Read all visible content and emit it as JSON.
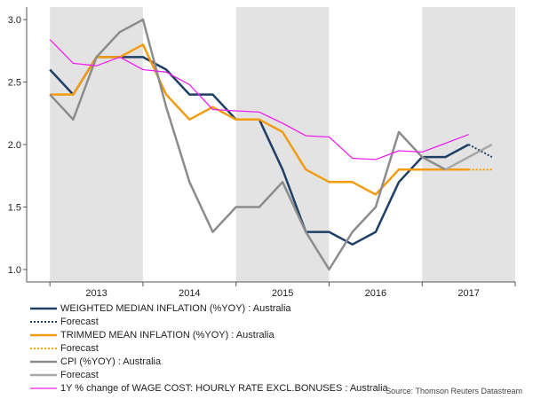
{
  "chart_data": {
    "type": "line",
    "title": "",
    "xlabel": "",
    "ylabel": "",
    "ylim": [
      0.9,
      3.1
    ],
    "yticks": [
      "1.0",
      "1.5",
      "2.0",
      "2.5",
      "3.0"
    ],
    "year_labels": [
      "2013",
      "2014",
      "2015",
      "2016",
      "2017"
    ],
    "shaded_years": [
      "2013",
      "2015",
      "2017"
    ],
    "grid": false,
    "legend_position": "bottom",
    "source": "Source: Thomson Reuters Datastream",
    "series": [
      {
        "name": "WEIGHTED MEDIAN INFLATION (%YOY) : Australia",
        "color": "#1f3f66",
        "style": "solid",
        "points": [
          [
            2013.0,
            2.6
          ],
          [
            2013.25,
            2.4
          ],
          [
            2013.5,
            2.7
          ],
          [
            2013.75,
            2.7
          ],
          [
            2014.0,
            2.7
          ],
          [
            2014.25,
            2.6
          ],
          [
            2014.5,
            2.4
          ],
          [
            2014.75,
            2.4
          ],
          [
            2015.0,
            2.2
          ],
          [
            2015.25,
            2.2
          ],
          [
            2015.5,
            1.8
          ],
          [
            2015.75,
            1.3
          ],
          [
            2016.0,
            1.3
          ],
          [
            2016.25,
            1.2
          ],
          [
            2016.5,
            1.3
          ],
          [
            2016.75,
            1.7
          ],
          [
            2017.0,
            1.9
          ],
          [
            2017.25,
            1.9
          ],
          [
            2017.5,
            2.0
          ]
        ]
      },
      {
        "name": "Forecast",
        "color": "#1f3f66",
        "style": "dotted",
        "points": [
          [
            2017.5,
            2.0
          ],
          [
            2017.75,
            1.9
          ]
        ]
      },
      {
        "name": "TRIMMED MEAN INFLATION (%YOY) : Australia",
        "color": "#f39c12",
        "style": "solid",
        "points": [
          [
            2013.0,
            2.4
          ],
          [
            2013.25,
            2.4
          ],
          [
            2013.5,
            2.7
          ],
          [
            2013.75,
            2.7
          ],
          [
            2014.0,
            2.8
          ],
          [
            2014.25,
            2.4
          ],
          [
            2014.5,
            2.2
          ],
          [
            2014.75,
            2.3
          ],
          [
            2015.0,
            2.2
          ],
          [
            2015.25,
            2.2
          ],
          [
            2015.5,
            2.1
          ],
          [
            2015.75,
            1.8
          ],
          [
            2016.0,
            1.7
          ],
          [
            2016.25,
            1.7
          ],
          [
            2016.5,
            1.6
          ],
          [
            2016.75,
            1.8
          ],
          [
            2017.0,
            1.8
          ],
          [
            2017.25,
            1.8
          ],
          [
            2017.5,
            1.8
          ]
        ]
      },
      {
        "name": "Forecast",
        "color": "#f39c12",
        "style": "dotted",
        "points": [
          [
            2017.5,
            1.8
          ],
          [
            2017.75,
            1.8
          ]
        ]
      },
      {
        "name": "CPI (%YOY) : Australia",
        "color": "#8c8c8c",
        "style": "solid",
        "points": [
          [
            2013.0,
            2.4
          ],
          [
            2013.25,
            2.2
          ],
          [
            2013.5,
            2.7
          ],
          [
            2013.75,
            2.9
          ],
          [
            2014.0,
            3.0
          ],
          [
            2014.25,
            2.3
          ],
          [
            2014.5,
            1.7
          ],
          [
            2014.75,
            1.3
          ],
          [
            2015.0,
            1.5
          ],
          [
            2015.25,
            1.5
          ],
          [
            2015.5,
            1.7
          ],
          [
            2015.75,
            1.3
          ],
          [
            2016.0,
            1.0
          ],
          [
            2016.25,
            1.3
          ],
          [
            2016.5,
            1.5
          ],
          [
            2016.75,
            2.1
          ],
          [
            2017.0,
            1.9
          ],
          [
            2017.25,
            1.8
          ]
        ]
      },
      {
        "name": "Forecast",
        "color": "#a8a8a8",
        "style": "solid",
        "points": [
          [
            2017.25,
            1.8
          ],
          [
            2017.5,
            1.9
          ],
          [
            2017.75,
            2.0
          ]
        ]
      },
      {
        "name": "1Y % change of WAGE COST: HOURLY RATE EXCL.BONUSES : Australia",
        "color": "#ee22ee",
        "style": "solid",
        "points": [
          [
            2013.0,
            2.84
          ],
          [
            2013.25,
            2.65
          ],
          [
            2013.5,
            2.63
          ],
          [
            2013.75,
            2.7
          ],
          [
            2014.0,
            2.6
          ],
          [
            2014.25,
            2.58
          ],
          [
            2014.5,
            2.48
          ],
          [
            2014.75,
            2.28
          ],
          [
            2015.0,
            2.27
          ],
          [
            2015.25,
            2.26
          ],
          [
            2015.5,
            2.17
          ],
          [
            2015.75,
            2.07
          ],
          [
            2016.0,
            2.06
          ],
          [
            2016.25,
            1.89
          ],
          [
            2016.5,
            1.88
          ],
          [
            2016.75,
            1.95
          ],
          [
            2017.0,
            1.94
          ],
          [
            2017.25,
            2.01
          ],
          [
            2017.5,
            2.08
          ]
        ]
      }
    ]
  }
}
